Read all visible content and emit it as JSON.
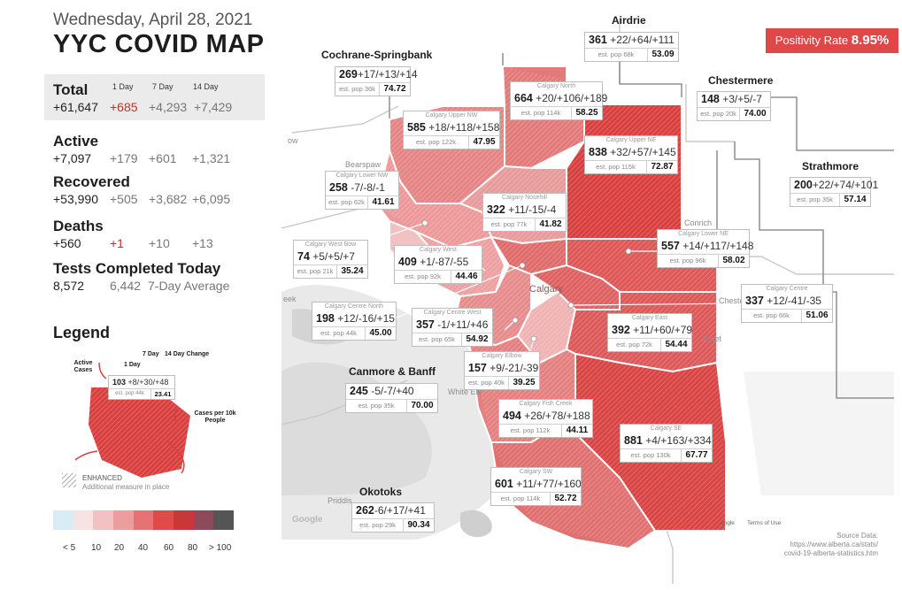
{
  "header": {
    "date": "Wednesday, April 28, 2021",
    "title": "YYC COVID MAP"
  },
  "summary": {
    "col_headers": [
      "1 Day",
      "7 Day",
      "14 Day"
    ],
    "total": {
      "label": "Total",
      "value": "+61,647",
      "d1": "+685",
      "d7": "+4,293",
      "d14": "+7,429"
    },
    "active": {
      "label": "Active",
      "value": "+7,097",
      "d1": "+179",
      "d7": "+601",
      "d14": "+1,321"
    },
    "recovered": {
      "label": "Recovered",
      "value": "+53,990",
      "d1": "+505",
      "d7": "+3,682",
      "d14": "+6,095"
    },
    "deaths": {
      "label": "Deaths",
      "value": "+560",
      "d1": "+1",
      "d7": "+10",
      "d14": "+13"
    },
    "tests": {
      "label": "Tests Completed Today",
      "value": "8,572",
      "avg": "6,442",
      "avg_label": "7-Day Average"
    }
  },
  "legend": {
    "title": "Legend",
    "label_7day": "7 Day",
    "label_14day": "14 Day Change",
    "label_1day": "1 Day",
    "label_active": "Active Cases",
    "label_per10k": "Cases per 10k People",
    "example": {
      "cases": "103",
      "changes": "+8/+30/+48",
      "pop": "est. pop 44k",
      "rate": "23.41"
    },
    "enhanced_title": "ENHANCED",
    "enhanced_desc": "Additional measure in place",
    "scale_colors": [
      "#d8ecf6",
      "#f7e3e3",
      "#f2c2c2",
      "#ec9d9d",
      "#e57373",
      "#df4a4a",
      "#c93838",
      "#8d4a5a",
      "#555555"
    ],
    "scale_labels": [
      "< 5",
      "10",
      "20",
      "40",
      "60",
      "80",
      "> 100"
    ]
  },
  "positivity": {
    "label": "Positivity Rate",
    "value": "8.95%"
  },
  "source": {
    "line1": "Source Data:",
    "line2": "https://www.alberta.ca/stats/",
    "line3": "covid-19-alberta-statistics.htm"
  },
  "map_labels": {
    "bearspaw": "Bearspaw",
    "calgary": "Calgary",
    "conrich": "Conrich",
    "chestermere_town": "Cheste",
    "janet": "Janet",
    "priddis": "Priddis",
    "white_elk": "White Elk",
    "google": "Google",
    "terms": "Terms of Use",
    "oogle": "oogle",
    "now": "ow",
    "eek": "eek"
  },
  "outer": {
    "airdrie": {
      "name": "Airdrie",
      "cases": "361",
      "changes": "+22/+64/+111",
      "pop": "est. pop 68k",
      "rate": "53.09"
    },
    "cochrane": {
      "name": "Cochrane-Springbank",
      "cases": "269",
      "changes": "+17/+13/+14",
      "pop": "est. pop 36k",
      "rate": "74.72"
    },
    "chestermere": {
      "name": "Chestermere",
      "cases": "148",
      "changes": "+3/+5/-7",
      "pop": "est. pop 20k",
      "rate": "74.00"
    },
    "strathmore": {
      "name": "Strathmore",
      "cases": "200",
      "changes": "+22/+74/+101",
      "pop": "est. pop 35k",
      "rate": "57.14"
    },
    "canmore": {
      "name": "Canmore & Banff",
      "cases": "245",
      "changes": "-5/-7/+40",
      "pop": "est. pop 35k",
      "rate": "70.00"
    },
    "okotoks": {
      "name": "Okotoks",
      "cases": "262",
      "changes": "-6/+17/+41",
      "pop": "est. pop 29k",
      "rate": "90.34"
    }
  },
  "areas": {
    "north": {
      "name": "Calgary North",
      "cases": "664",
      "changes": "+20/+106/+189",
      "pop": "est. pop 114k",
      "rate": "58.25"
    },
    "upper_nw": {
      "name": "Calgary Upper NW",
      "cases": "585",
      "changes": "+18/+118/+158",
      "pop": "est. pop 122k",
      "rate": "47.95"
    },
    "upper_ne": {
      "name": "Calgary Upper NE",
      "cases": "838",
      "changes": "+32/+57/+145",
      "pop": "est. pop 115k",
      "rate": "72.87"
    },
    "lower_nw": {
      "name": "Calgary Lower NW",
      "cases": "258",
      "changes": "-7/-8/-1",
      "pop": "est. pop 62k",
      "rate": "41.61"
    },
    "nosehill": {
      "name": "Calgary Nosehill",
      "cases": "322",
      "changes": "+11/-15/-4",
      "pop": "est. pop 77k",
      "rate": "41.82"
    },
    "lower_ne": {
      "name": "Calgary Lower NE",
      "cases": "557",
      "changes": "+14/+117/+148",
      "pop": "est. pop 96k",
      "rate": "58.02"
    },
    "west_bow": {
      "name": "Calgary West Bow",
      "cases": "74",
      "changes": "+5/+5/+7",
      "pop": "est. pop 21k",
      "rate": "35.24"
    },
    "west": {
      "name": "Calgary West",
      "cases": "409",
      "changes": "+1/-87/-55",
      "pop": "est. pop 92k",
      "rate": "44.46"
    },
    "centre_north": {
      "name": "Calgary Centre North",
      "cases": "198",
      "changes": "+12/-16/+15",
      "pop": "est. pop 44k",
      "rate": "45.00"
    },
    "centre_west": {
      "name": "Calgary Centre West",
      "cases": "357",
      "changes": "-1/+11/+46",
      "pop": "est. pop 65k",
      "rate": "54.92"
    },
    "centre": {
      "name": "Calgary Centre",
      "cases": "337",
      "changes": "+12/-41/-35",
      "pop": "est. pop 66k",
      "rate": "51.06"
    },
    "east": {
      "name": "Calgary East",
      "cases": "392",
      "changes": "+11/+60/+79",
      "pop": "est. pop 72k",
      "rate": "54.44"
    },
    "elbow": {
      "name": "Calgary Elbow",
      "cases": "157",
      "changes": "+9/-21/-39",
      "pop": "est. pop 40k",
      "rate": "39.25"
    },
    "fish_creek": {
      "name": "Calgary Fish Creek",
      "cases": "494",
      "changes": "+26/+78/+188",
      "pop": "est. pop 112k",
      "rate": "44.11"
    },
    "se": {
      "name": "Calgary SE",
      "cases": "881",
      "changes": "+4/+163/+334",
      "pop": "est. pop 130k",
      "rate": "67.77"
    },
    "sw": {
      "name": "Calgary SW",
      "cases": "601",
      "changes": "+11/+77/+160",
      "pop": "est. pop 114k",
      "rate": "52.72"
    }
  }
}
